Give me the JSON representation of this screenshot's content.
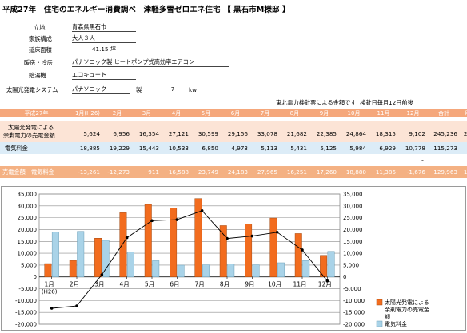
{
  "title": "平成27年　住宅のエネルギー消費調べ　津軽多雪ゼロエネ住宅 【 黒石市M様邸 】",
  "info": {
    "location_label": "立地",
    "location_value": "青森県黒石市",
    "family_label": "家族構成",
    "family_value": "大人３人",
    "floor_label": "延床面積",
    "floor_value": "41.15 坪",
    "heating_label": "暖房・冷房",
    "heating_value": "パナソニック製 ヒートポンプ式高効率エアコン",
    "hotwater_label": "給湯機",
    "hotwater_value": "エコキュート",
    "pv_label": "太陽光発電システム",
    "pv_maker": "パナソニック",
    "pv_maker_suffix": "製",
    "pv_kw": "7",
    "pv_kw_unit": "kw"
  },
  "note": "東北電力検針票による金額です: 検針日毎月12日前後",
  "table": {
    "header": [
      "平成27年",
      "1月(H26)",
      "2月",
      "3月",
      "4月",
      "5月",
      "6月",
      "7月",
      "8月",
      "9月",
      "10月",
      "11月",
      "12月",
      "合計",
      "月平均"
    ],
    "rows": [
      {
        "label": "太陽光発電による余剰電力の売電金額",
        "label1": "太陽光発電による",
        "label2": "余剰電力の売電金額",
        "values": [
          "5,624",
          "6,956",
          "16,354",
          "27,121",
          "30,599",
          "29,156",
          "33,078",
          "21,682",
          "22,385",
          "24,864",
          "18,315",
          "9,102",
          "245,236",
          "20,436"
        ]
      },
      {
        "label": "電気料金",
        "values": [
          "18,885",
          "19,229",
          "15,443",
          "10,533",
          "6,850",
          "4,973",
          "5,113",
          "5,431",
          "5,125",
          "5,984",
          "6,929",
          "10,778",
          "115,273",
          "9,606"
        ]
      },
      {
        "label": "売電金額－電気料金",
        "values": [
          "-13,261",
          "-12,273",
          "911",
          "16,588",
          "23,749",
          "24,183",
          "27,965",
          "16,251",
          "17,260",
          "18,880",
          "11,386",
          "-1,676",
          "129,963",
          "10,830"
        ]
      }
    ],
    "dash": "-"
  },
  "chart_data": {
    "type": "bar",
    "categories": [
      "1月\n(H26)",
      "2月",
      "3月",
      "4月",
      "5月",
      "6月",
      "7月",
      "8月",
      "9月",
      "10月",
      "11月",
      "12月"
    ],
    "category_labels": [
      "1月",
      "2月",
      "3月",
      "4月",
      "5月",
      "6月",
      "7月",
      "8月",
      "9月",
      "10月",
      "11月",
      "12月"
    ],
    "first_sub_label": "(H26)",
    "series": [
      {
        "name": "太陽光発電による余剰電力の売電金額",
        "kind": "bar",
        "color": "#f26c1e",
        "values": [
          5624,
          6956,
          16354,
          27121,
          30599,
          29156,
          33078,
          21682,
          22385,
          24864,
          18315,
          9102
        ]
      },
      {
        "name": "電気料金",
        "kind": "bar",
        "color": "#a9d3e8",
        "values": [
          18885,
          19229,
          15443,
          10533,
          6850,
          4973,
          5113,
          5431,
          5125,
          5984,
          6929,
          10778
        ]
      },
      {
        "kind": "line",
        "color": "#000000",
        "values": [
          -13261,
          -12273,
          911,
          16588,
          23749,
          24183,
          27965,
          16251,
          17260,
          18880,
          11386,
          -1676
        ]
      }
    ],
    "legend_lines": [
      "太陽光発電による",
      "余剰電力の売電金",
      "額"
    ],
    "legend_second": "電気料金",
    "ylim": [
      -20000,
      35000
    ],
    "yticks": [
      -20000,
      -15000,
      -10000,
      -5000,
      0,
      5000,
      10000,
      15000,
      20000,
      25000,
      30000,
      35000
    ],
    "ytick_labels_left": [
      "-20,000",
      "-15,000",
      "-10,000",
      "-5,000",
      "0",
      "5,000",
      "10,000",
      "15,000",
      "20,000",
      "25,000",
      "30,000",
      "35,000"
    ],
    "ytick_labels_right": [
      "-20,000",
      "-15,000",
      "-10,000",
      "-5,000",
      "0",
      "5,000",
      "10,000",
      "15,000",
      "20,000",
      "25,000",
      "30,000",
      "35,000"
    ],
    "grid": true,
    "legend_position": "right"
  }
}
